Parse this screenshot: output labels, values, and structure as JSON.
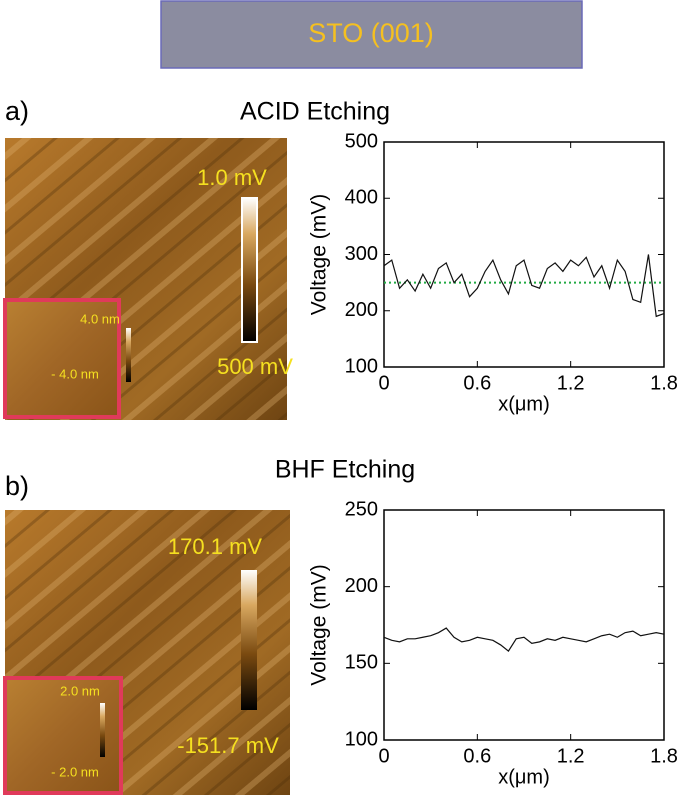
{
  "title": "STO (001)",
  "panels": [
    {
      "label": "a)",
      "scale_top": "1.0 mV",
      "scale_bottom": "500 mV",
      "inset_top": "4.0 nm",
      "inset_bottom": "- 4.0 nm"
    },
    {
      "label": "b)",
      "scale_top": "170.1 mV",
      "scale_bottom": "-151.7 mV",
      "inset_top": "2.0 nm",
      "inset_bottom": "- 2.0 nm"
    }
  ],
  "chart_data": [
    {
      "type": "line",
      "title": "ACID Etching",
      "x_label": "x(μm)",
      "y_label": "Voltage (mV)",
      "x": [
        0,
        0.05,
        0.1,
        0.15,
        0.2,
        0.25,
        0.3,
        0.35,
        0.4,
        0.45,
        0.5,
        0.55,
        0.6,
        0.65,
        0.7,
        0.75,
        0.8,
        0.85,
        0.9,
        0.95,
        1.0,
        1.05,
        1.1,
        1.15,
        1.2,
        1.25,
        1.3,
        1.35,
        1.4,
        1.45,
        1.5,
        1.55,
        1.6,
        1.65,
        1.7,
        1.75,
        1.8
      ],
      "series": [
        {
          "color": "#111111",
          "values": [
            280,
            290,
            240,
            255,
            235,
            265,
            240,
            275,
            285,
            250,
            265,
            225,
            240,
            270,
            290,
            255,
            230,
            280,
            290,
            245,
            240,
            275,
            285,
            270,
            290,
            280,
            295,
            260,
            280,
            240,
            290,
            270,
            220,
            215,
            300,
            190,
            195
          ]
        }
      ],
      "reference_line": {
        "value": 250,
        "color": "#22aa44"
      },
      "xlim": [
        0,
        1.8
      ],
      "xticks": [
        0,
        0.6,
        1.2,
        1.8
      ],
      "ylim": [
        100,
        500
      ],
      "yticks": [
        100,
        200,
        300,
        400,
        500
      ]
    },
    {
      "type": "line",
      "title": "BHF Etching",
      "x_label": "x(μm)",
      "y_label": "Voltage (mV)",
      "x": [
        0,
        0.05,
        0.1,
        0.15,
        0.2,
        0.25,
        0.3,
        0.35,
        0.4,
        0.45,
        0.5,
        0.55,
        0.6,
        0.65,
        0.7,
        0.75,
        0.8,
        0.85,
        0.9,
        0.95,
        1.0,
        1.05,
        1.1,
        1.15,
        1.2,
        1.25,
        1.3,
        1.35,
        1.4,
        1.45,
        1.5,
        1.55,
        1.6,
        1.65,
        1.7,
        1.75,
        1.8
      ],
      "series": [
        {
          "color": "#111111",
          "values": [
            167,
            165,
            164,
            166,
            166,
            167,
            168,
            170,
            173,
            167,
            164,
            165,
            167,
            166,
            165,
            162,
            158,
            166,
            167,
            163,
            164,
            166,
            165,
            167,
            166,
            165,
            164,
            166,
            168,
            169,
            167,
            170,
            171,
            168,
            169,
            170,
            169
          ]
        }
      ],
      "xlim": [
        0,
        1.8
      ],
      "xticks": [
        0,
        0.6,
        1.2,
        1.8
      ],
      "ylim": [
        100,
        250
      ],
      "yticks": [
        100,
        150,
        200,
        250
      ]
    }
  ]
}
